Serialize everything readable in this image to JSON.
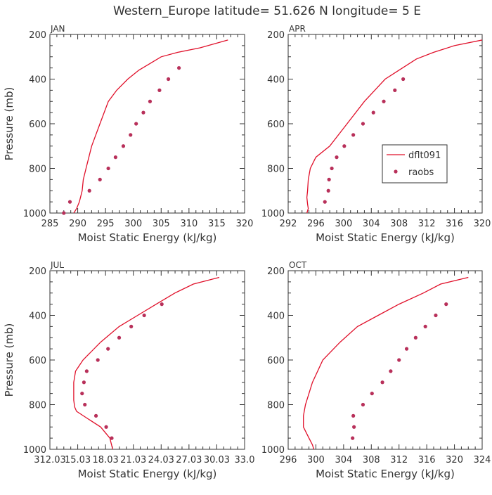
{
  "figure": {
    "title": "Western_Europe  latitude= 51.626 N longitude= 5 E"
  },
  "legend": {
    "model_label": "dflt091",
    "obs_label": "raobs"
  },
  "colors": {
    "model": "#e0102a",
    "obs": "#b8305a",
    "axis": "#333333",
    "text": "#333333"
  },
  "chart_data": [
    {
      "type": "line",
      "panel": "JAN",
      "title": "JAN",
      "xlabel": "Moist Static Energy (kJ/kg)",
      "ylabel": "Pressure (mb)",
      "xlim": [
        285,
        320
      ],
      "ylim": [
        1000,
        200
      ],
      "y_inverted": true,
      "x_ticks": [
        "285",
        "290",
        "295",
        "300",
        "305",
        "310",
        "315",
        "320"
      ],
      "y_ticks": [
        "1000",
        "800",
        "600",
        "400",
        "200"
      ],
      "model": {
        "x": [
          317.0,
          312.0,
          308.0,
          305.0,
          303.0,
          301.0,
          299.0,
          297.0,
          295.5,
          294.0,
          292.5,
          291.5,
          291.0,
          290.8,
          290.5,
          290.3,
          289.8,
          289.3
        ],
        "y": [
          225,
          260,
          280,
          300,
          330,
          360,
          400,
          450,
          500,
          600,
          700,
          800,
          850,
          900,
          930,
          950,
          980,
          1000
        ]
      },
      "obs": {
        "x": [
          308.2,
          306.3,
          304.7,
          303.0,
          301.8,
          300.5,
          299.5,
          298.2,
          296.8,
          295.5,
          294.0,
          292.1,
          288.6,
          287.5
        ],
        "y": [
          350,
          400,
          450,
          500,
          550,
          600,
          650,
          700,
          750,
          800,
          850,
          900,
          950,
          1000
        ]
      },
      "legend_shown": false
    },
    {
      "type": "line",
      "panel": "APR",
      "title": "APR",
      "xlabel": "Moist Static Energy (kJ/kg)",
      "ylabel": "",
      "xlim": [
        292,
        320
      ],
      "ylim": [
        1000,
        200
      ],
      "y_inverted": true,
      "x_ticks": [
        "292",
        "296",
        "300",
        "304",
        "308",
        "312",
        "316",
        "320"
      ],
      "y_ticks": [
        "1000",
        "800",
        "600",
        "400",
        "200"
      ],
      "model": {
        "x": [
          320.0,
          316.0,
          313.0,
          310.5,
          308.0,
          306.0,
          304.5,
          303.0,
          300.5,
          298.0,
          296.0,
          295.2,
          294.9,
          294.8,
          294.7,
          294.8,
          294.9,
          294.6
        ],
        "y": [
          225,
          250,
          280,
          310,
          360,
          400,
          450,
          500,
          600,
          700,
          750,
          800,
          850,
          900,
          930,
          960,
          980,
          1010
        ]
      },
      "obs": {
        "x": [
          308.6,
          307.4,
          305.8,
          304.3,
          302.8,
          301.4,
          300.1,
          299.0,
          298.3,
          297.9,
          297.8,
          297.3
        ],
        "y": [
          400,
          450,
          500,
          550,
          600,
          650,
          700,
          750,
          800,
          850,
          900,
          950
        ]
      },
      "legend_shown": true,
      "legend_position": "right-middle"
    },
    {
      "type": "line",
      "panel": "JUL",
      "title": "JUL",
      "xlabel": "Moist Static Energy (kJ/kg)",
      "ylabel": "Pressure (mb)",
      "xlim": [
        312.03,
        333.03
      ],
      "ylim": [
        1000,
        200
      ],
      "y_inverted": true,
      "x_ticks": [
        "312.03",
        "15.03",
        "18.03",
        "21.03",
        "24.03",
        "27.03",
        "30.03",
        "33.0"
      ],
      "y_ticks": [
        "1000",
        "800",
        "600",
        "400",
        "200"
      ],
      "model": {
        "x": [
          330.3,
          327.5,
          325.5,
          323.5,
          321.5,
          319.5,
          317.5,
          315.6,
          314.8,
          314.6,
          314.6,
          314.6,
          314.7,
          314.9,
          316.0,
          317.5,
          318.5,
          318.8
        ],
        "y": [
          230,
          260,
          300,
          350,
          400,
          450,
          520,
          600,
          650,
          700,
          720,
          780,
          810,
          830,
          860,
          900,
          950,
          1000
        ]
      },
      "obs": {
        "x": [
          324.1,
          322.2,
          320.8,
          319.5,
          318.3,
          317.2,
          316.0,
          315.7,
          315.5,
          315.8,
          317.0,
          318.1,
          318.7
        ],
        "y": [
          350,
          400,
          450,
          500,
          550,
          600,
          650,
          700,
          750,
          800,
          850,
          900,
          950
        ]
      },
      "legend_shown": false
    },
    {
      "type": "line",
      "panel": "OCT",
      "title": "OCT",
      "xlabel": "Moist Static Energy (kJ/kg)",
      "ylabel": "",
      "xlim": [
        296,
        324
      ],
      "ylim": [
        1000,
        200
      ],
      "y_inverted": true,
      "x_ticks": [
        "296",
        "300",
        "304",
        "308",
        "312",
        "316",
        "320",
        "324"
      ],
      "y_ticks": [
        "1000",
        "800",
        "600",
        "400",
        "200"
      ],
      "model": {
        "x": [
          322.0,
          318.0,
          315.5,
          312.0,
          309.0,
          306.0,
          303.5,
          301.0,
          299.5,
          298.5,
          298.2,
          298.2,
          299.0,
          299.5,
          299.7
        ],
        "y": [
          230,
          260,
          300,
          350,
          400,
          450,
          520,
          600,
          700,
          800,
          850,
          900,
          950,
          980,
          1000
        ]
      },
      "obs": {
        "x": [
          318.8,
          317.3,
          315.8,
          314.4,
          313.1,
          312.0,
          310.8,
          309.6,
          308.1,
          306.8,
          305.4,
          305.5,
          305.3
        ],
        "y": [
          350,
          400,
          450,
          500,
          550,
          600,
          650,
          700,
          750,
          800,
          850,
          900,
          950
        ]
      },
      "legend_shown": false
    }
  ]
}
